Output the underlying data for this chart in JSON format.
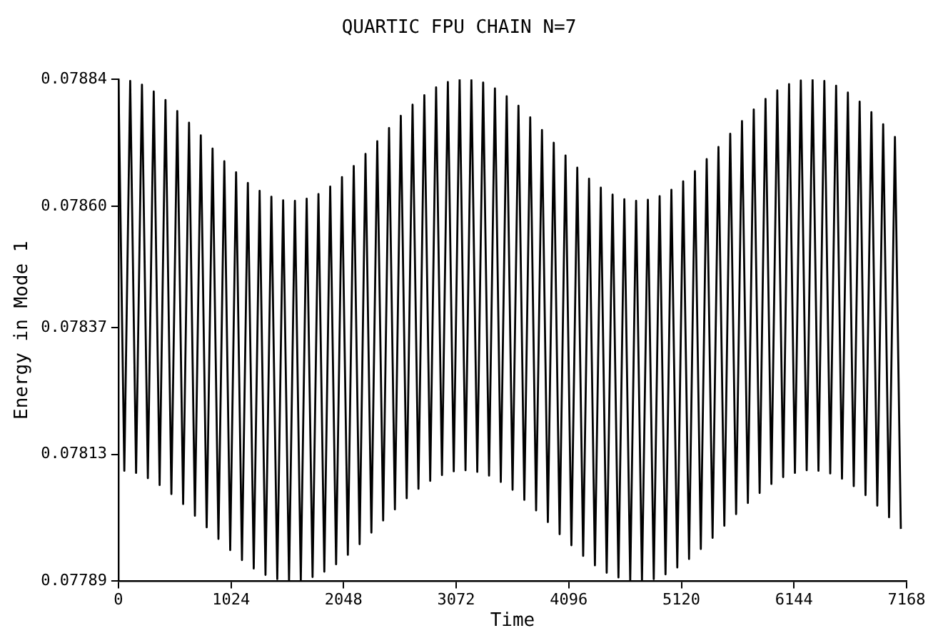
{
  "chart_data": {
    "type": "line",
    "title": "QUARTIC FPU CHAIN N=7",
    "xlabel": "Time",
    "ylabel": "Energy in Mode 1",
    "xlim": [
      0,
      7168
    ],
    "xticks": [
      0,
      1024,
      2048,
      3072,
      4096,
      5120,
      6144,
      7168
    ],
    "ylim": [
      0.07789,
      0.07884
    ],
    "yticks": [
      0.07789,
      0.07813,
      0.07837,
      {
        "value": 0.0786,
        "label": "0.07860"
      },
      0.07884
    ],
    "grid": false,
    "legend": false,
    "marker": "none",
    "line_style": "solid",
    "series": [
      {
        "color": "#000000",
        "x": [
          0,
          53.5,
          107,
          160.5,
          214,
          267.5,
          321,
          374.5,
          428,
          481.5,
          535,
          588.5,
          642,
          695.5,
          749,
          802.5,
          856,
          909.5,
          963,
          1016.5,
          1070,
          1123.5,
          1177,
          1230.5,
          1284,
          1337.5,
          1391,
          1444.5,
          1498,
          1551.5,
          1605,
          1658.5,
          1712,
          1765.5,
          1819,
          1872.5,
          1926,
          1979.5,
          2033,
          2086.5,
          2140,
          2193.5,
          2247,
          2300.5,
          2354,
          2407.5,
          2461,
          2514.5,
          2568,
          2621.5,
          2675,
          2728.5,
          2782,
          2835.5,
          2889,
          2942.5,
          2996,
          3049.5,
          3103,
          3156.5,
          3210,
          3263.5,
          3317,
          3370.5,
          3424,
          3477.5,
          3531,
          3584.5,
          3638,
          3691.5,
          3745,
          3798.5,
          3852,
          3905.5,
          3959,
          4012.5,
          4066,
          4119.5,
          4173,
          4226.5,
          4280,
          4333.5,
          4387,
          4440.5,
          4494,
          4547.5,
          4601,
          4654.5,
          4708,
          4761.5,
          4815,
          4868.5,
          4922,
          4975.5,
          5029,
          5082.5,
          5136,
          5189.5,
          5243,
          5296.5,
          5350,
          5403.5,
          5457,
          5510.5,
          5564,
          5617.5,
          5671,
          5724.5,
          5778,
          5831.5,
          5885,
          5938.5,
          5992,
          6045.5,
          6099,
          6152.5,
          6206,
          6259.5,
          6313,
          6366.5,
          6420,
          6473.5,
          6527,
          6580.5,
          6634,
          6687.5,
          6741,
          6794.5,
          6848,
          6901.5,
          6955,
          7008.5,
          7062,
          7115.5
        ],
        "values": [
          0.07884,
          0.078099,
          0.078837,
          0.078095,
          0.07883,
          0.078085,
          0.078817,
          0.078072,
          0.078801,
          0.078055,
          0.07878,
          0.078036,
          0.078758,
          0.078014,
          0.078734,
          0.077992,
          0.078709,
          0.07797,
          0.078685,
          0.077949,
          0.078664,
          0.07793,
          0.078644,
          0.077914,
          0.078629,
          0.077902,
          0.078618,
          0.077894,
          0.078611,
          0.07789,
          0.07861,
          0.077891,
          0.078614,
          0.077898,
          0.078623,
          0.077908,
          0.078637,
          0.077922,
          0.078655,
          0.07794,
          0.078676,
          0.07796,
          0.078699,
          0.077982,
          0.078723,
          0.078005,
          0.078748,
          0.078026,
          0.078771,
          0.078047,
          0.078792,
          0.078065,
          0.07881,
          0.07808,
          0.078825,
          0.078091,
          0.078835,
          0.078098,
          0.07884,
          0.0781,
          0.078839,
          0.078097,
          0.078834,
          0.07809,
          0.078823,
          0.078078,
          0.078808,
          0.078063,
          0.07879,
          0.078044,
          0.078768,
          0.078024,
          0.078744,
          0.078002,
          0.07872,
          0.077979,
          0.078696,
          0.077958,
          0.078673,
          0.077938,
          0.078652,
          0.07792,
          0.078635,
          0.077906,
          0.078622,
          0.077897,
          0.078613,
          0.077891,
          0.07861,
          0.07789,
          0.078612,
          0.077894,
          0.078619,
          0.077903,
          0.078631,
          0.077916,
          0.078647,
          0.077932,
          0.078666,
          0.077951,
          0.078689,
          0.077972,
          0.078712,
          0.077995,
          0.078737,
          0.078017,
          0.078761,
          0.078038,
          0.078783,
          0.078057,
          0.078803,
          0.078074,
          0.078819,
          0.078087,
          0.078831,
          0.078095,
          0.078838,
          0.0781,
          0.07884,
          0.078099,
          0.078837,
          0.078094,
          0.078828,
          0.078084,
          0.078815,
          0.07807,
          0.078798,
          0.078053,
          0.078778,
          0.078033,
          0.078755,
          0.078011,
          0.078731,
          0.077989
        ]
      }
    ]
  }
}
